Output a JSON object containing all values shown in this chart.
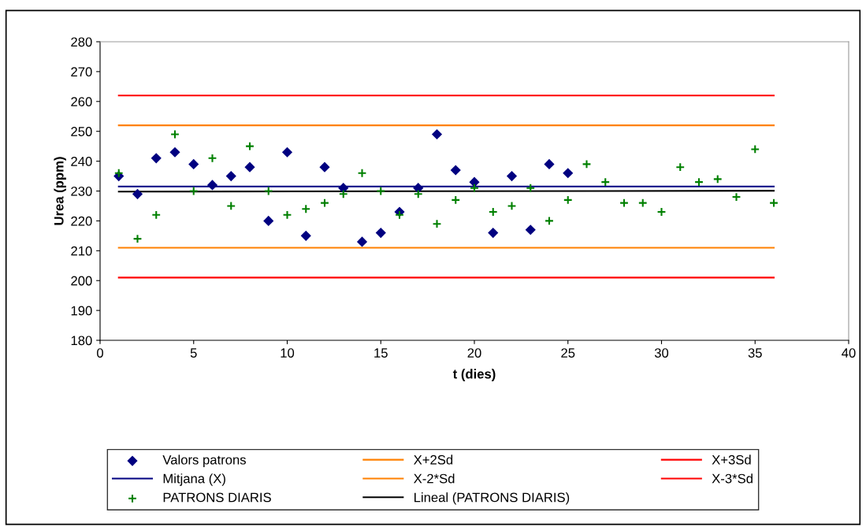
{
  "chart_data": {
    "type": "scatter",
    "xlabel": "t (dies)",
    "ylabel": "Urea (ppm)",
    "xlim": [
      0,
      40
    ],
    "xticks": [
      0,
      5,
      10,
      15,
      20,
      25,
      30,
      35,
      40
    ],
    "ylim": [
      180,
      280
    ],
    "yticks": [
      180,
      190,
      200,
      210,
      220,
      230,
      240,
      250,
      260,
      270,
      280
    ],
    "grid": false,
    "legend": "bottom",
    "series": [
      {
        "name": "Valors patrons",
        "marker": "diamond",
        "color": "#000080",
        "x": [
          1,
          2,
          3,
          4,
          5,
          6,
          7,
          8,
          9,
          10,
          11,
          12,
          13,
          14,
          15,
          16,
          17,
          18,
          19,
          20,
          21,
          22,
          23,
          24,
          25
        ],
        "values": [
          235,
          229,
          241,
          243,
          239,
          232,
          235,
          238,
          220,
          243,
          215,
          238,
          231,
          213,
          216,
          223,
          231,
          249,
          237,
          233,
          216,
          235,
          217,
          239,
          236
        ]
      },
      {
        "name": "Mitjana (X)",
        "type": "line",
        "marker": "none",
        "color": "#000080",
        "x": [
          1,
          36
        ],
        "values": [
          231.5,
          231.5
        ]
      },
      {
        "name": "PATRONS DIARIS",
        "marker": "cross",
        "color": "#008000",
        "x": [
          1,
          2,
          3,
          4,
          5,
          6,
          7,
          8,
          9,
          10,
          11,
          12,
          13,
          14,
          15,
          16,
          17,
          18,
          19,
          20,
          21,
          22,
          23,
          24,
          25,
          26,
          27,
          28,
          29,
          30,
          31,
          32,
          33,
          34,
          35,
          36
        ],
        "values": [
          236,
          214,
          222,
          249,
          230,
          241,
          225,
          245,
          230,
          222,
          224,
          226,
          229,
          236,
          230,
          222,
          229,
          219,
          227,
          231,
          223,
          225,
          231,
          220,
          227,
          239,
          233,
          226,
          226,
          223,
          238,
          233,
          234,
          228,
          244,
          226
        ]
      },
      {
        "name": "X+2Sd",
        "type": "line",
        "marker": "none",
        "color": "#ff8000",
        "x": [
          1,
          36
        ],
        "values": [
          252,
          252
        ]
      },
      {
        "name": "X-2*Sd",
        "type": "line",
        "marker": "none",
        "color": "#ff8000",
        "x": [
          1,
          36
        ],
        "values": [
          211,
          211
        ]
      },
      {
        "name": "Lineal (PATRONS DIARIS)",
        "type": "line",
        "marker": "none",
        "color": "#000000",
        "x": [
          1,
          36
        ],
        "values": [
          229.8,
          230.1
        ]
      },
      {
        "name": "X+3Sd",
        "type": "line",
        "marker": "none",
        "color": "#ff0000",
        "x": [
          1,
          36
        ],
        "values": [
          262,
          262
        ]
      },
      {
        "name": "X-3*Sd",
        "type": "line",
        "marker": "none",
        "color": "#ff0000",
        "x": [
          1,
          36
        ],
        "values": [
          201,
          201
        ]
      }
    ]
  }
}
